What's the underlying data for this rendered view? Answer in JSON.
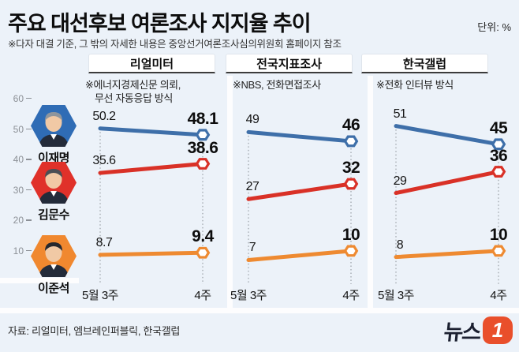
{
  "header": {
    "title": "주요 대선후보 여론조사 지지율 추이",
    "unit": "단위: %",
    "subtitle": "※다자 대결 기준, 그 밖의 자세한 내용은 중앙선거여론조사심의위원회 홈페이지 참조"
  },
  "candidates": [
    {
      "name": "이재명",
      "color": "#2f6cb5",
      "hair": "#8e959d"
    },
    {
      "name": "김문수",
      "color": "#e0312a",
      "hair": "#4a4f55"
    },
    {
      "name": "이준석",
      "color": "#f0882f",
      "hair": "#26282e"
    }
  ],
  "chart_data": {
    "type": "line",
    "unit": "%",
    "ylim": [
      0,
      65
    ],
    "yticks": [
      60,
      50,
      40,
      30,
      20,
      10
    ],
    "x_labels": [
      "5월 3주",
      "4주"
    ],
    "grid": "dotted-vertical-at-x-points",
    "legend_position": "left-photo-column",
    "panels": [
      {
        "name": "리얼미터",
        "note_lines": [
          "※에너지경제신문 의뢰,",
          "무선 자동응답 방식"
        ],
        "series": [
          {
            "candidate": "이재명",
            "color": "#3e6fa9",
            "values": [
              50.2,
              48.1
            ]
          },
          {
            "candidate": "김문수",
            "color": "#d93127",
            "values": [
              35.6,
              38.6
            ]
          },
          {
            "candidate": "이준석",
            "color": "#ee8a31",
            "values": [
              8.7,
              9.4
            ]
          }
        ]
      },
      {
        "name": "전국지표조사",
        "note_lines": [
          "※NBS, 전화면접조사"
        ],
        "series": [
          {
            "candidate": "이재명",
            "color": "#3e6fa9",
            "values": [
              49,
              46
            ]
          },
          {
            "candidate": "김문수",
            "color": "#d93127",
            "values": [
              27,
              32
            ]
          },
          {
            "candidate": "이준석",
            "color": "#ee8a31",
            "values": [
              7,
              10
            ]
          }
        ]
      },
      {
        "name": "한국갤럽",
        "note_lines": [
          "※전화 인터뷰 방식"
        ],
        "series": [
          {
            "candidate": "이재명",
            "color": "#3e6fa9",
            "values": [
              51,
              45
            ]
          },
          {
            "candidate": "김문수",
            "color": "#d93127",
            "values": [
              29,
              36
            ]
          },
          {
            "candidate": "이준석",
            "color": "#ee8a31",
            "values": [
              8,
              10
            ]
          }
        ]
      }
    ]
  },
  "footer": {
    "source": "자료: 리얼미터, 엠브레인퍼블릭, 한국갤럽",
    "logo_text": "뉴스",
    "logo_number": "1"
  }
}
